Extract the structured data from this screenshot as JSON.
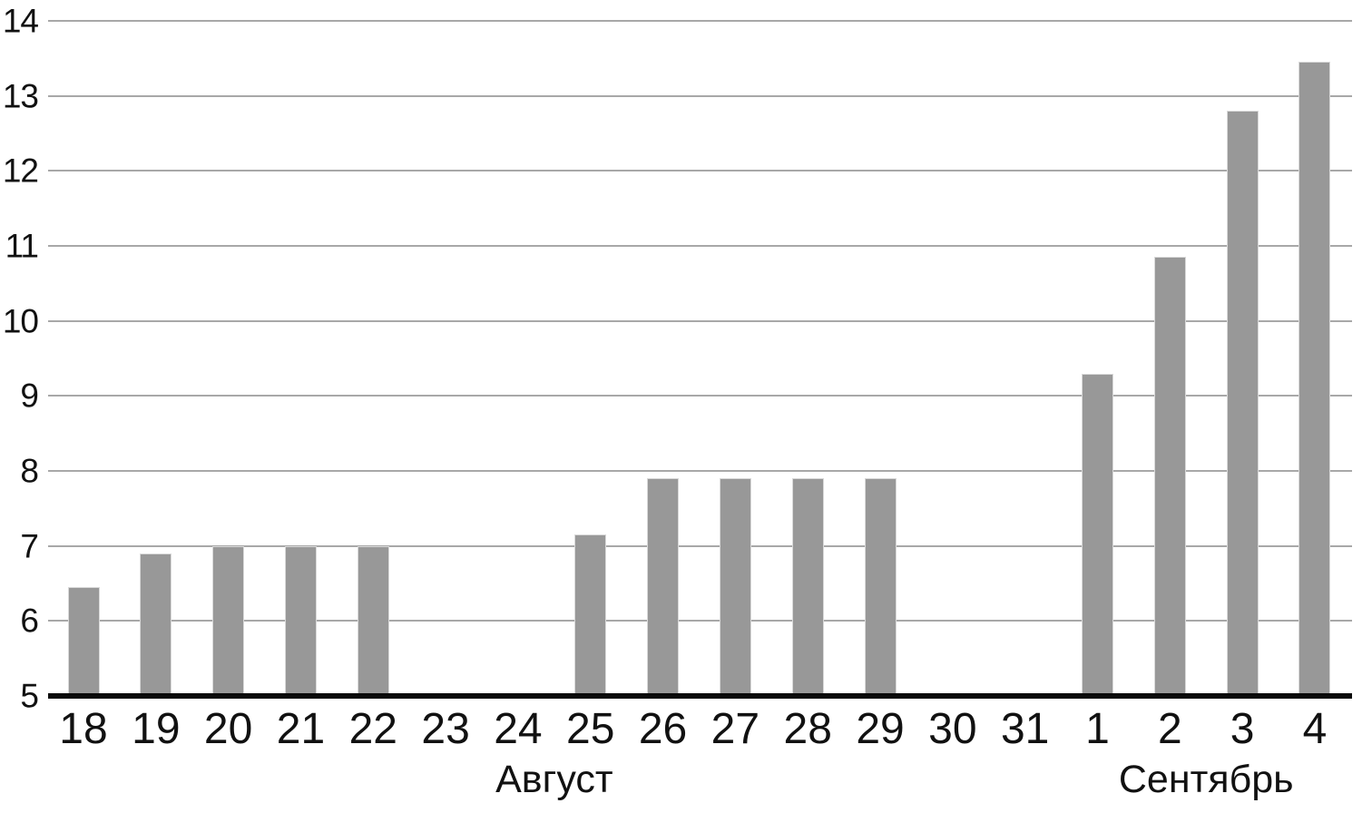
{
  "chart_data": {
    "type": "bar",
    "title": "",
    "xlabel": "",
    "ylabel": "",
    "categories": [
      "18",
      "19",
      "20",
      "21",
      "22",
      "23",
      "24",
      "25",
      "26",
      "27",
      "28",
      "29",
      "30",
      "31",
      "1",
      "2",
      "3",
      "4"
    ],
    "values": [
      6.45,
      6.9,
      7,
      7,
      7,
      null,
      null,
      7.15,
      7.9,
      7.9,
      7.9,
      7.9,
      null,
      null,
      9.3,
      10.85,
      12.8,
      13.45
    ],
    "month_groups": [
      {
        "label": "Август",
        "start_index": 0,
        "end_index": 13
      },
      {
        "label": "Сентябрь",
        "start_index": 14,
        "end_index": 17
      }
    ],
    "ylim": [
      5,
      14
    ],
    "yticks": [
      5,
      6,
      7,
      8,
      9,
      10,
      11,
      12,
      13,
      14
    ],
    "grid": true,
    "legend": false,
    "colors": {
      "bar": "#989898",
      "bar_edge": "#d9d9d9",
      "gridline": "#a8a8a8",
      "axis_line": "#0a0a0a",
      "text": "#111111",
      "background": "#ffffff"
    }
  }
}
